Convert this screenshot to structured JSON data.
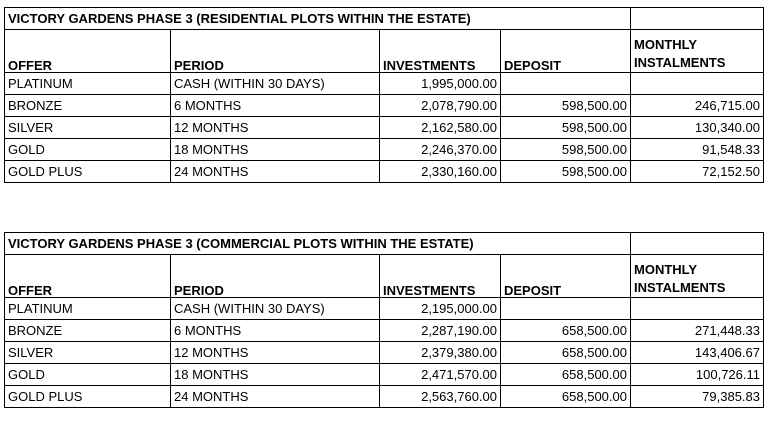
{
  "tables": [
    {
      "title": "VICTORY GARDENS PHASE 3 (RESIDENTIAL PLOTS WITHIN THE ESTATE)",
      "headers": {
        "offer": "OFFER",
        "period": "PERIOD",
        "investments": "INVESTMENTS",
        "deposit": "DEPOSIT",
        "monthly_line1": "MONTHLY",
        "monthly_line2": "INSTALMENTS"
      },
      "rows": [
        {
          "offer": "PLATINUM",
          "period": "CASH (WITHIN 30 DAYS)",
          "investments": "1,995,000.00",
          "deposit": "",
          "monthly": ""
        },
        {
          "offer": "BRONZE",
          "period": "6 MONTHS",
          "investments": "2,078,790.00",
          "deposit": "598,500.00",
          "monthly": "246,715.00"
        },
        {
          "offer": "SILVER",
          "period": "12 MONTHS",
          "investments": "2,162,580.00",
          "deposit": "598,500.00",
          "monthly": "130,340.00"
        },
        {
          "offer": "GOLD",
          "period": "18 MONTHS",
          "investments": "2,246,370.00",
          "deposit": "598,500.00",
          "monthly": "91,548.33"
        },
        {
          "offer": "GOLD PLUS",
          "period": "24 MONTHS",
          "investments": "2,330,160.00",
          "deposit": "598,500.00",
          "monthly": "72,152.50"
        }
      ]
    },
    {
      "title": "VICTORY GARDENS PHASE 3 (COMMERCIAL PLOTS WITHIN THE ESTATE)",
      "headers": {
        "offer": "OFFER",
        "period": "PERIOD",
        "investments": "INVESTMENTS",
        "deposit": "DEPOSIT",
        "monthly_line1": "MONTHLY",
        "monthly_line2": "INSTALMENTS"
      },
      "rows": [
        {
          "offer": "PLATINUM",
          "period": "CASH (WITHIN 30 DAYS)",
          "investments": "2,195,000.00",
          "deposit": "",
          "monthly": ""
        },
        {
          "offer": "BRONZE",
          "period": "6 MONTHS",
          "investments": "2,287,190.00",
          "deposit": "658,500.00",
          "monthly": "271,448.33"
        },
        {
          "offer": "SILVER",
          "period": "12 MONTHS",
          "investments": "2,379,380.00",
          "deposit": "658,500.00",
          "monthly": "143,406.67"
        },
        {
          "offer": "GOLD",
          "period": "18 MONTHS",
          "investments": "2,471,570.00",
          "deposit": "658,500.00",
          "monthly": "100,726.11"
        },
        {
          "offer": "GOLD PLUS",
          "period": "24 MONTHS",
          "investments": "2,563,760.00",
          "deposit": "658,500.00",
          "monthly": "79,385.83"
        }
      ]
    }
  ]
}
